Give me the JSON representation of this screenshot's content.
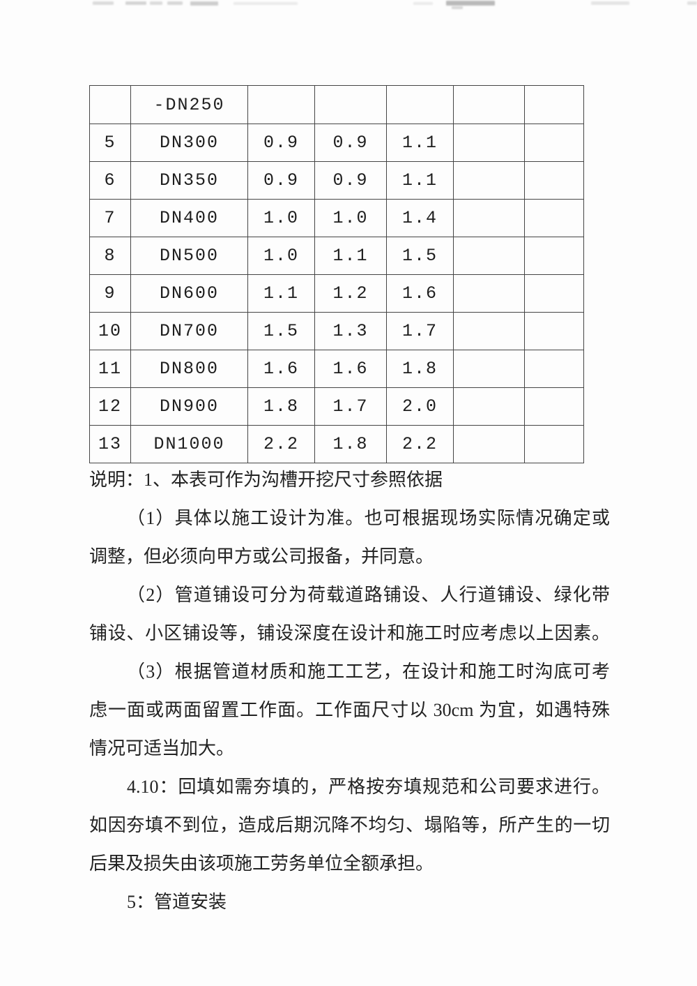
{
  "page": {
    "background": "#fdfdfd",
    "text_color": "#222222",
    "table_border_color": "#454545"
  },
  "table": {
    "rows": [
      {
        "cells": [
          "",
          "-DN250",
          "",
          "",
          "",
          "",
          ""
        ]
      },
      {
        "cells": [
          "5",
          "DN300",
          "0.9",
          "0.9",
          "1.1",
          "",
          ""
        ]
      },
      {
        "cells": [
          "6",
          "DN350",
          "0.9",
          "0.9",
          "1.1",
          "",
          ""
        ]
      },
      {
        "cells": [
          "7",
          "DN400",
          "1.0",
          "1.0",
          "1.4",
          "",
          ""
        ]
      },
      {
        "cells": [
          "8",
          "DN500",
          "1.0",
          "1.1",
          "1.5",
          "",
          ""
        ]
      },
      {
        "cells": [
          "9",
          "DN600",
          "1.1",
          "1.2",
          "1.6",
          "",
          ""
        ]
      },
      {
        "cells": [
          "10",
          "DN700",
          "1.5",
          "1.3",
          "1.7",
          "",
          ""
        ]
      },
      {
        "cells": [
          "11",
          "DN800",
          "1.6",
          "1.6",
          "1.8",
          "",
          ""
        ]
      },
      {
        "cells": [
          "12",
          "DN900",
          "1.8",
          "1.7",
          "2.0",
          "",
          ""
        ]
      },
      {
        "cells": [
          "13",
          "DN1000",
          "2.2",
          "1.8",
          "2.2",
          "",
          ""
        ]
      }
    ]
  },
  "paragraph_lines": [
    {
      "text": "说明：1、本表可作为沟槽开挖尺寸参照依据",
      "indent": false,
      "justify": false
    },
    {
      "text": "（1）具体以施工设计为准。也可根据现场实际情况确定或",
      "indent": true,
      "justify": true
    },
    {
      "text": "调整，但必须向甲方或公司报备，并同意。",
      "indent": false,
      "justify": false
    },
    {
      "text": "（2）管道铺设可分为荷载道路铺设、人行道铺设、绿化带",
      "indent": true,
      "justify": true
    },
    {
      "text": "铺设、小区铺设等，铺设深度在设计和施工时应考虑以上因素。",
      "indent": false,
      "justify": true
    },
    {
      "text": "（3）根据管道材质和施工工艺，在设计和施工时沟底可考",
      "indent": true,
      "justify": true
    },
    {
      "text": "虑一面或两面留置工作面。工作面尺寸以 30cm 为宜，如遇特殊",
      "indent": false,
      "justify": true
    },
    {
      "text": "情况可适当加大。",
      "indent": false,
      "justify": false
    },
    {
      "text": "4.10：回填如需夯填的，严格按夯填规范和公司要求进行。",
      "indent": true,
      "justify": true
    },
    {
      "text": "如因夯填不到位，造成后期沉降不均匀、塌陷等，所产生的一切",
      "indent": false,
      "justify": true
    },
    {
      "text": "后果及损失由该项施工劳务单位全额承担。",
      "indent": false,
      "justify": false
    },
    {
      "text": "5：管道安装",
      "indent": true,
      "justify": false
    }
  ]
}
